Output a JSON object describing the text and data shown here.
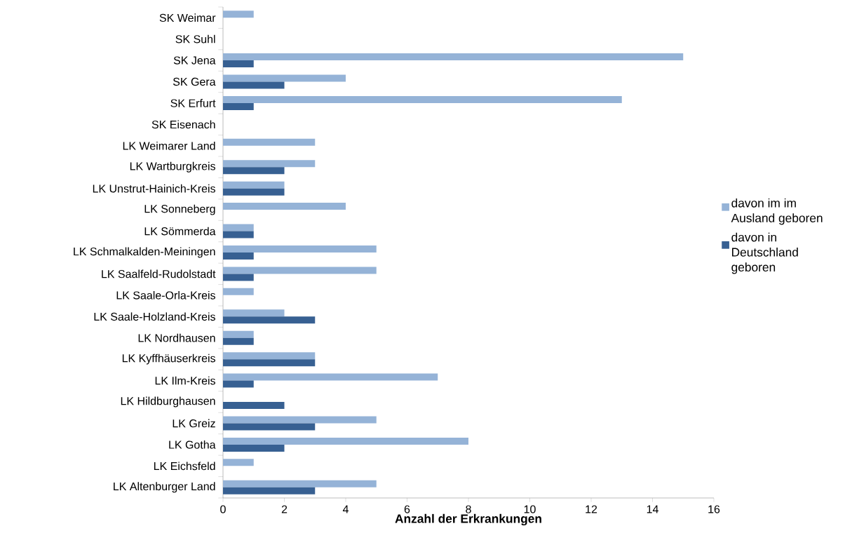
{
  "chart_data": {
    "type": "bar",
    "orientation": "horizontal",
    "xlabel": "Anzahl der Erkrankungen",
    "categories": [
      "SK Weimar",
      "SK Suhl",
      "SK Jena",
      "SK Gera",
      "SK Erfurt",
      "SK Eisenach",
      "LK Weimarer Land",
      "LK Wartburgkreis",
      "LK Unstrut-Hainich-Kreis",
      "LK Sonneberg",
      "LK Sömmerda",
      "LK Schmalkalden-Meiningen",
      "LK Saalfeld-Rudolstadt",
      "LK Saale-Orla-Kreis",
      "LK Saale-Holzland-Kreis",
      "LK Nordhausen",
      "LK Kyffhäuserkreis",
      "LK Ilm-Kreis",
      "LK Hildburghausen",
      "LK Greiz",
      "LK Gotha",
      "LK Eichsfeld",
      "LK Altenburger Land"
    ],
    "series": [
      {
        "name": "davon im im Ausland geboren",
        "color": "#95b3d7",
        "values": [
          1,
          0,
          15,
          4,
          13,
          0,
          3,
          3,
          2,
          4,
          1,
          5,
          5,
          1,
          2,
          1,
          3,
          7,
          0,
          5,
          8,
          1,
          5
        ]
      },
      {
        "name": "davon in Deutschland geboren",
        "color": "#376092",
        "values": [
          0,
          0,
          1,
          2,
          1,
          0,
          0,
          2,
          2,
          0,
          1,
          1,
          1,
          0,
          3,
          1,
          3,
          1,
          2,
          3,
          2,
          0,
          3
        ]
      }
    ],
    "xlim": [
      0,
      16
    ],
    "xticks": [
      0,
      2,
      4,
      6,
      8,
      10,
      12,
      14,
      16
    ],
    "legend": "right"
  }
}
